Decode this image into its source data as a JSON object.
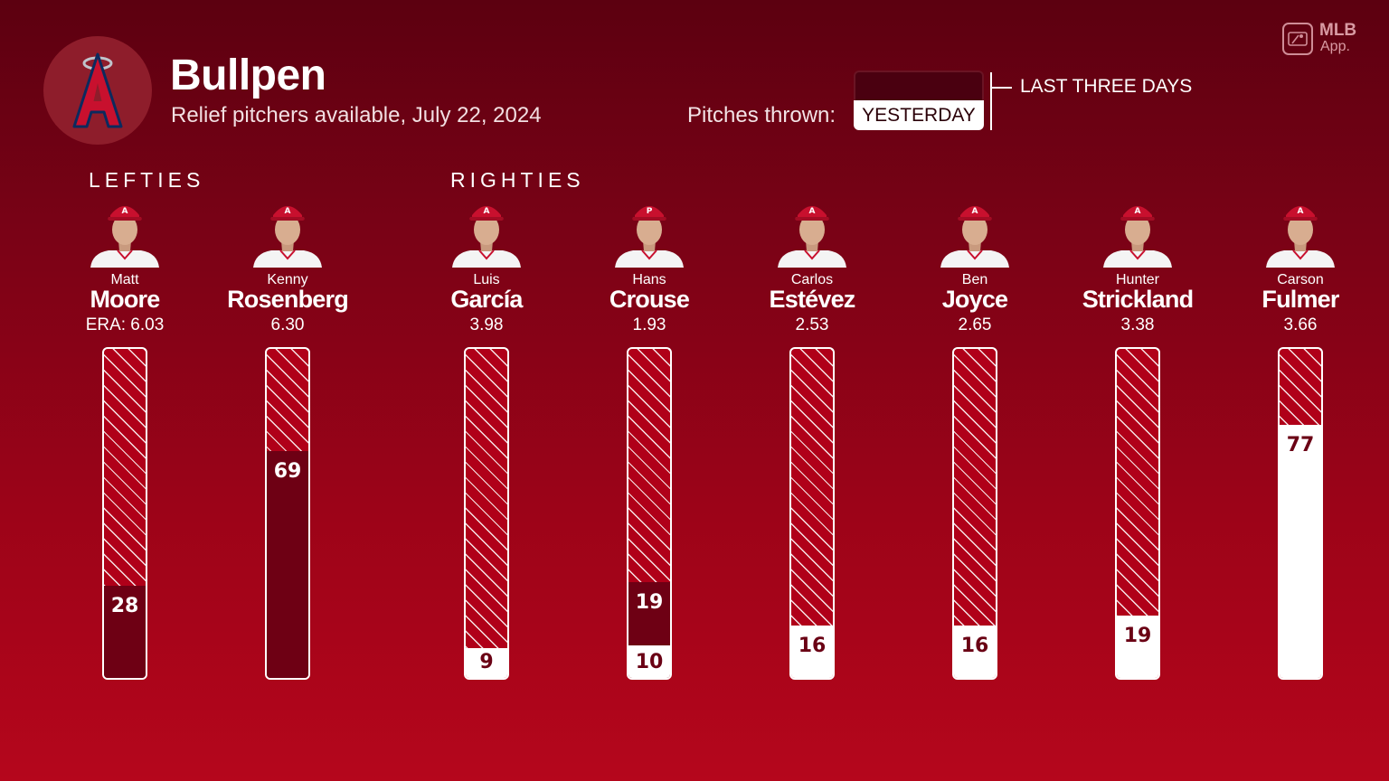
{
  "header": {
    "title": "Bullpen",
    "subtitle": "Relief pitchers available, July 22, 2024",
    "team_logo_letter": "A"
  },
  "brand": {
    "logo_text": "MLB",
    "logo_subtext": "App."
  },
  "legend": {
    "label": "Pitches thrown:",
    "yesterday_label": "YESTERDAY",
    "three_day_label": "LAST THREE DAYS"
  },
  "sections": {
    "lefties_label": "LEFTIES",
    "righties_label": "RIGHTIES"
  },
  "colors": {
    "background_top": "#5c0010",
    "background_bottom": "#b5061c",
    "three_day_fill": "#6e0014",
    "yesterday_fill": "#ffffff",
    "available_hatch": "#b00019",
    "cap_red": "#c8102e"
  },
  "chart_data": {
    "type": "bar",
    "categories": [
      "Matt Moore",
      "Kenny Rosenberg",
      "Luis García",
      "Hans Crouse",
      "Carlos Estévez",
      "Ben Joyce",
      "Hunter Strickland",
      "Carson Fulmer"
    ],
    "ylim": [
      0,
      100
    ],
    "series": [
      {
        "name": "YESTERDAY",
        "values": [
          0,
          0,
          9,
          10,
          16,
          16,
          19,
          77
        ]
      },
      {
        "name": "LAST THREE DAYS",
        "values": [
          28,
          69,
          9,
          29,
          16,
          16,
          19,
          77
        ]
      }
    ]
  },
  "pitchers": [
    {
      "first": "Matt",
      "last": "Moore",
      "era": "ERA: 6.03",
      "hand": "left",
      "yesterday": 0,
      "three_day": 28,
      "yesterday_label": "",
      "three_day_label": "28",
      "cap_letter": "A"
    },
    {
      "first": "Kenny",
      "last": "Rosenberg",
      "era": "6.30",
      "hand": "left",
      "yesterday": 0,
      "three_day": 69,
      "yesterday_label": "",
      "three_day_label": "69",
      "cap_letter": "A"
    },
    {
      "first": "Luis",
      "last": "García",
      "era": "3.98",
      "hand": "right",
      "yesterday": 9,
      "three_day": 9,
      "yesterday_label": "9",
      "three_day_label": "",
      "cap_letter": "A"
    },
    {
      "first": "Hans",
      "last": "Crouse",
      "era": "1.93",
      "hand": "right",
      "yesterday": 10,
      "three_day": 29,
      "yesterday_label": "10",
      "three_day_label": "19",
      "cap_letter": "P"
    },
    {
      "first": "Carlos",
      "last": "Estévez",
      "era": "2.53",
      "hand": "right",
      "yesterday": 16,
      "three_day": 16,
      "yesterday_label": "16",
      "three_day_label": "",
      "cap_letter": "A"
    },
    {
      "first": "Ben",
      "last": "Joyce",
      "era": "2.65",
      "hand": "right",
      "yesterday": 16,
      "three_day": 16,
      "yesterday_label": "16",
      "three_day_label": "",
      "cap_letter": "A"
    },
    {
      "first": "Hunter",
      "last": "Strickland",
      "era": "3.38",
      "hand": "right",
      "yesterday": 19,
      "three_day": 19,
      "yesterday_label": "19",
      "three_day_label": "",
      "cap_letter": "A"
    },
    {
      "first": "Carson",
      "last": "Fulmer",
      "era": "3.66",
      "hand": "right",
      "yesterday": 77,
      "three_day": 77,
      "yesterday_label": "77",
      "three_day_label": "",
      "cap_letter": "A"
    }
  ]
}
